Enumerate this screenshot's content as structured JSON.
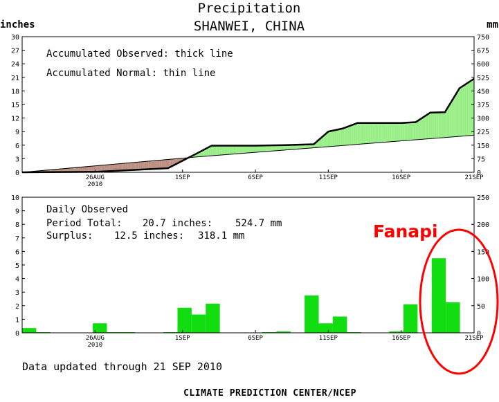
{
  "header": {
    "title": "Precipitation",
    "location": "SHANWEI, CHINA",
    "left_unit": "inches",
    "right_unit": "mm"
  },
  "annotations": {
    "fanapi": "Fanapi",
    "circle_color": "#ff0000"
  },
  "footer": {
    "updated": "Data updated through 21 SEP 2010",
    "credit": "CLIMATE PREDICTION CENTER/NCEP"
  },
  "colors": {
    "surplus_fill": "#99ee88",
    "deficit_fill": "#bb9080",
    "bar_fill": "#11dd11",
    "observed_line": "#000000"
  },
  "chart_data": [
    {
      "type": "area",
      "name": "accumulated",
      "note_observed": "Accumulated Observed: thick line",
      "note_normal": "Accumulated Normal: thin line",
      "x_axis": {
        "range": [
          "2010-08-21",
          "2010-09-21"
        ],
        "tick_labels": [
          {
            "date": "2010-08-26",
            "label": "26AUG",
            "sub": "2010"
          },
          {
            "date": "2010-09-01",
            "label": "1SEP"
          },
          {
            "date": "2010-09-06",
            "label": "6SEP"
          },
          {
            "date": "2010-09-11",
            "label": "11SEP"
          },
          {
            "date": "2010-09-16",
            "label": "16SEP"
          },
          {
            "date": "2010-09-21",
            "label": "21SEP"
          }
        ]
      },
      "ylim": [
        0,
        30
      ],
      "left_ticks": [
        "0",
        "3",
        "6",
        "9",
        "12",
        "15",
        "18",
        "21",
        "24",
        "27",
        "30"
      ],
      "right_ticks": [
        "0",
        "75",
        "150",
        "225",
        "300",
        "375",
        "450",
        "525",
        "600",
        "675",
        "750"
      ],
      "observed": {
        "x": [
          "2010-08-21",
          "2010-08-26",
          "2010-08-31",
          "2010-09-02",
          "2010-09-03",
          "2010-09-04",
          "2010-09-05",
          "2010-09-06",
          "2010-09-08",
          "2010-09-10",
          "2010-09-11",
          "2010-09-12",
          "2010-09-13",
          "2010-09-16",
          "2010-09-17",
          "2010-09-18",
          "2010-09-19",
          "2010-09-20",
          "2010-09-21"
        ],
        "y": [
          0,
          0.1,
          0.9,
          4.2,
          5.9,
          5.9,
          5.9,
          5.9,
          6.0,
          6.2,
          9.0,
          9.7,
          10.9,
          10.9,
          11.1,
          13.2,
          13.3,
          18.6,
          20.7
        ]
      },
      "normal": {
        "x": [
          "2010-08-21",
          "2010-09-02",
          "2010-09-21"
        ],
        "y": [
          0,
          3.4,
          8.2
        ]
      }
    },
    {
      "type": "bar",
      "name": "daily",
      "title": "Daily Observed",
      "period_total_label": "Period Total:",
      "period_total_in": "20.7 inches:",
      "period_total_mm": "524.7 mm",
      "surplus_label": "Surplus:",
      "surplus_in": "12.5 inches:",
      "surplus_mm": "318.1 mm",
      "ylim": [
        0,
        10
      ],
      "left_ticks": [
        "0",
        "1",
        "2",
        "3",
        "4",
        "5",
        "6",
        "7",
        "8",
        "9",
        "10"
      ],
      "right_ticks": [
        "0",
        "50",
        "100",
        "150",
        "200",
        "250"
      ],
      "x": [
        "2010-08-21",
        "2010-08-22",
        "2010-08-23",
        "2010-08-24",
        "2010-08-25",
        "2010-08-26",
        "2010-08-27",
        "2010-08-28",
        "2010-08-29",
        "2010-08-30",
        "2010-08-31",
        "2010-09-01",
        "2010-09-02",
        "2010-09-03",
        "2010-09-04",
        "2010-09-05",
        "2010-09-06",
        "2010-09-07",
        "2010-09-08",
        "2010-09-09",
        "2010-09-10",
        "2010-09-11",
        "2010-09-12",
        "2010-09-13",
        "2010-09-14",
        "2010-09-15",
        "2010-09-16",
        "2010-09-17",
        "2010-09-18",
        "2010-09-19",
        "2010-09-20",
        "2010-09-21"
      ],
      "values": [
        0.35,
        0.05,
        0,
        0,
        0,
        0.7,
        0.05,
        0.05,
        0,
        0,
        0.05,
        1.85,
        1.35,
        2.15,
        0,
        0,
        0,
        0.05,
        0.1,
        0,
        2.75,
        0.7,
        1.2,
        0.05,
        0,
        0,
        0.1,
        2.1,
        0,
        5.5,
        2.25,
        0
      ]
    }
  ]
}
